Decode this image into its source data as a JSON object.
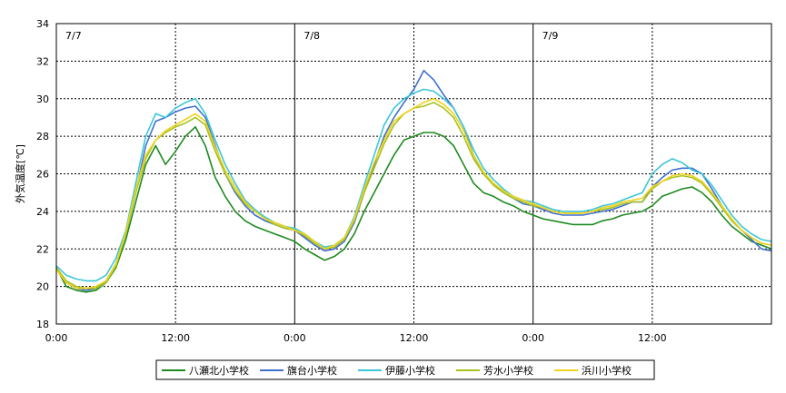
{
  "chart_data": {
    "type": "line",
    "title": "",
    "xlabel": "",
    "ylabel": "外気温度[℃]",
    "ylim": [
      18,
      34
    ],
    "yticks": [
      "18",
      "20",
      "22",
      "24",
      "26",
      "28",
      "30",
      "32",
      "34"
    ],
    "xlim": [
      0,
      72
    ],
    "xticks": [
      {
        "x": 0,
        "label": "0:00"
      },
      {
        "x": 12,
        "label": "12:00"
      },
      {
        "x": 24,
        "label": "0:00"
      },
      {
        "x": 36,
        "label": "12:00"
      },
      {
        "x": 48,
        "label": "0:00"
      },
      {
        "x": 60,
        "label": "12:00"
      }
    ],
    "day_labels": [
      {
        "x": 0,
        "label": "7/7"
      },
      {
        "x": 24,
        "label": "7/8"
      },
      {
        "x": 48,
        "label": "7/9"
      }
    ],
    "legend_position": "bottom",
    "x": [
      0,
      1,
      2,
      3,
      4,
      5,
      6,
      7,
      8,
      9,
      10,
      11,
      12,
      13,
      14,
      15,
      16,
      17,
      18,
      19,
      20,
      21,
      22,
      23,
      24,
      25,
      26,
      27,
      28,
      29,
      30,
      31,
      32,
      33,
      34,
      35,
      36,
      37,
      38,
      39,
      40,
      41,
      42,
      43,
      44,
      45,
      46,
      47,
      48,
      49,
      50,
      51,
      52,
      53,
      54,
      55,
      56,
      57,
      58,
      59,
      60,
      61,
      62,
      63,
      64,
      65,
      66,
      67,
      68,
      69,
      70,
      71,
      72
    ],
    "series": [
      {
        "name": "八瀬北小学校",
        "color": "#1e8a1e",
        "values": [
          21.0,
          20.0,
          19.8,
          19.7,
          19.8,
          20.2,
          21.0,
          22.5,
          24.5,
          26.5,
          27.5,
          26.5,
          27.2,
          28.0,
          28.5,
          27.5,
          25.8,
          24.8,
          24.0,
          23.5,
          23.2,
          23.0,
          22.8,
          22.6,
          22.4,
          22.0,
          21.7,
          21.4,
          21.6,
          22.0,
          22.8,
          24.0,
          25.0,
          26.0,
          27.0,
          27.8,
          28.0,
          28.2,
          28.2,
          28.0,
          27.5,
          26.5,
          25.5,
          25.0,
          24.8,
          24.5,
          24.3,
          24.0,
          23.8,
          23.6,
          23.5,
          23.4,
          23.3,
          23.3,
          23.3,
          23.5,
          23.6,
          23.8,
          23.9,
          24.0,
          24.3,
          24.8,
          25.0,
          25.2,
          25.3,
          25.0,
          24.5,
          23.8,
          23.2,
          22.8,
          22.4,
          22.2,
          22.0
        ]
      },
      {
        "name": "旗台小学校",
        "color": "#3f6fcf",
        "values": [
          21.0,
          20.2,
          19.9,
          19.8,
          19.9,
          20.3,
          21.2,
          22.8,
          25.0,
          27.5,
          28.8,
          29.0,
          29.3,
          29.5,
          29.6,
          29.0,
          27.5,
          26.0,
          25.0,
          24.3,
          23.8,
          23.5,
          23.3,
          23.1,
          23.0,
          22.6,
          22.2,
          21.9,
          22.0,
          22.4,
          23.4,
          25.0,
          26.5,
          28.0,
          29.0,
          29.8,
          30.5,
          31.5,
          31.0,
          30.2,
          29.5,
          28.5,
          27.0,
          26.0,
          25.5,
          25.0,
          24.7,
          24.4,
          24.3,
          24.1,
          23.9,
          23.8,
          23.8,
          23.8,
          23.9,
          24.0,
          24.1,
          24.3,
          24.5,
          24.5,
          25.3,
          25.8,
          26.2,
          26.3,
          26.3,
          26.0,
          25.2,
          24.3,
          23.5,
          23.0,
          22.5,
          22.0,
          21.9
        ]
      },
      {
        "name": "伊藤小学校",
        "color": "#3cc6d8",
        "values": [
          21.1,
          20.6,
          20.4,
          20.3,
          20.3,
          20.6,
          21.5,
          23.0,
          25.5,
          28.0,
          29.2,
          29.0,
          29.5,
          29.8,
          30.0,
          29.2,
          27.8,
          26.5,
          25.5,
          24.6,
          24.1,
          23.7,
          23.4,
          23.2,
          23.1,
          22.8,
          22.4,
          22.1,
          22.2,
          22.6,
          23.7,
          25.4,
          27.0,
          28.6,
          29.5,
          30.0,
          30.3,
          30.5,
          30.4,
          30.0,
          29.5,
          28.5,
          27.3,
          26.3,
          25.7,
          25.2,
          24.8,
          24.6,
          24.5,
          24.3,
          24.1,
          24.0,
          24.0,
          24.0,
          24.1,
          24.3,
          24.4,
          24.6,
          24.8,
          25.0,
          26.0,
          26.5,
          26.8,
          26.6,
          26.2,
          26.0,
          25.4,
          24.6,
          23.8,
          23.2,
          22.8,
          22.5,
          22.4
        ]
      },
      {
        "name": "芳水小学校",
        "color": "#a8c21c",
        "values": [
          21.0,
          20.3,
          20.0,
          19.9,
          19.9,
          20.2,
          21.1,
          22.8,
          25.0,
          26.8,
          27.8,
          28.2,
          28.5,
          28.7,
          29.0,
          28.6,
          27.2,
          26.0,
          25.1,
          24.4,
          24.0,
          23.6,
          23.3,
          23.1,
          23.0,
          22.7,
          22.3,
          22.0,
          22.1,
          22.5,
          23.5,
          25.0,
          26.3,
          27.6,
          28.6,
          29.2,
          29.5,
          29.6,
          29.8,
          29.5,
          29.0,
          28.0,
          26.8,
          26.0,
          25.4,
          25.0,
          24.7,
          24.5,
          24.3,
          24.2,
          24.0,
          23.9,
          23.9,
          23.9,
          24.0,
          24.1,
          24.2,
          24.4,
          24.5,
          24.5,
          25.2,
          25.6,
          25.8,
          25.9,
          25.8,
          25.5,
          24.9,
          24.2,
          23.5,
          23.0,
          22.6,
          22.3,
          22.2
        ]
      },
      {
        "name": "浜川小学校",
        "color": "#f2d21c",
        "values": [
          20.9,
          20.2,
          19.9,
          19.9,
          20.0,
          20.3,
          21.2,
          22.9,
          25.2,
          27.0,
          27.8,
          28.3,
          28.6,
          28.9,
          29.2,
          28.8,
          27.4,
          26.2,
          25.3,
          24.5,
          24.0,
          23.6,
          23.4,
          23.2,
          23.0,
          22.8,
          22.4,
          22.0,
          22.2,
          22.6,
          23.6,
          25.2,
          26.6,
          27.8,
          28.8,
          29.2,
          29.5,
          29.8,
          30.0,
          29.7,
          29.2,
          28.3,
          27.0,
          26.1,
          25.5,
          25.1,
          24.8,
          24.6,
          24.4,
          24.2,
          24.0,
          23.9,
          23.9,
          23.9,
          24.0,
          24.2,
          24.3,
          24.5,
          24.6,
          24.7,
          25.3,
          25.6,
          25.9,
          26.0,
          25.9,
          25.6,
          25.0,
          24.3,
          23.6,
          23.0,
          22.6,
          22.3,
          22.2
        ]
      }
    ]
  }
}
